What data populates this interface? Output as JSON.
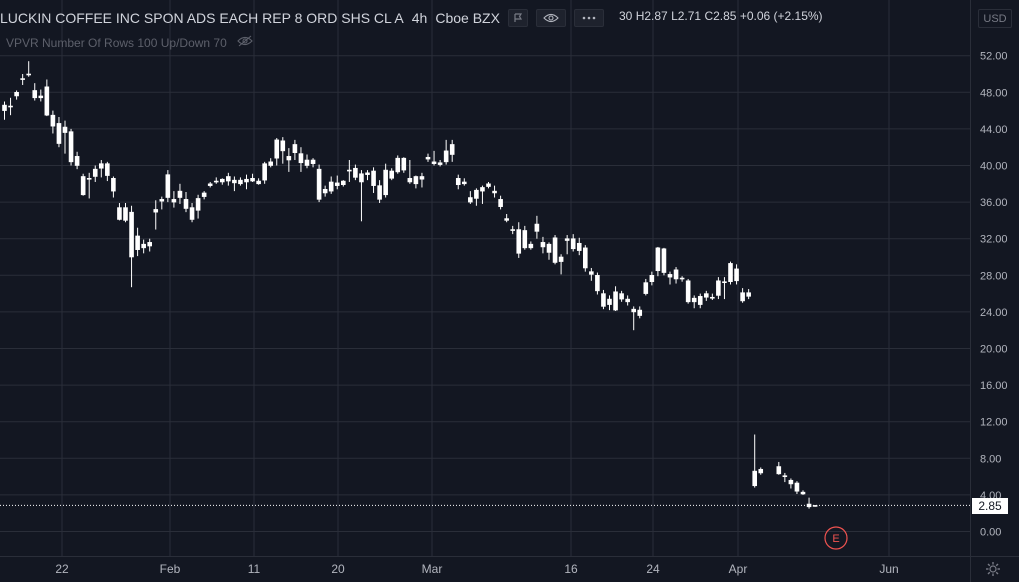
{
  "header": {
    "symbol": "LUCKIN COFFEE INC SPON ADS EACH REP 8 ORD SHS CL A",
    "interval": "4h",
    "exchange": "Cboe BZX",
    "ohlc_partial": "30",
    "high": "H2.87",
    "low": "L2.71",
    "close": "C2.85",
    "change": "+0.06 (+2.15%)"
  },
  "indicator": {
    "label": "VPVR Number Of Rows 100 Up/Down 70"
  },
  "currency": "USD",
  "last_price_label": "2.85",
  "earnings_marker": "E",
  "icons": {
    "flag": "flag-icon",
    "eye": "eye-icon",
    "more": "more-dots-icon",
    "hide": "eye-off-icon",
    "settings": "gear-icon"
  },
  "colors": {
    "background": "#131722",
    "candle": "#ffffff",
    "grid": "#2a2e39",
    "earnings": "#ef5350"
  },
  "chart_data": {
    "type": "candlestick",
    "y_ticks": [
      "52.00",
      "48.00",
      "44.00",
      "40.00",
      "36.00",
      "32.00",
      "28.00",
      "24.00",
      "20.00",
      "16.00",
      "12.00",
      "8.00",
      "4.00",
      "0.00"
    ],
    "ylim": [
      0,
      52
    ],
    "x_ticks": [
      "22",
      "Feb",
      "11",
      "20",
      "Mar",
      "16",
      "24",
      "Apr",
      "Jun"
    ],
    "grid": true,
    "series_bars": [
      [
        46.6,
        47.0,
        45.0,
        46.0
      ],
      [
        46.5,
        47.4,
        45.5,
        46.4
      ],
      [
        48.0,
        48.2,
        47.2,
        47.6
      ],
      [
        49.5,
        50.0,
        48.8,
        49.4
      ],
      [
        50.0,
        51.4,
        49.7,
        50.0
      ],
      [
        48.2,
        49.0,
        47.1,
        47.4
      ],
      [
        47.6,
        48.3,
        47.0,
        47.4
      ],
      [
        48.6,
        49.4,
        45.4,
        45.5
      ],
      [
        45.5,
        46.0,
        43.5,
        44.3
      ],
      [
        44.6,
        45.3,
        42.0,
        42.4
      ],
      [
        44.2,
        44.9,
        41.3,
        43.6
      ],
      [
        43.7,
        44.0,
        40.0,
        40.4
      ],
      [
        41.0,
        41.5,
        39.6,
        40.0
      ],
      [
        38.8,
        39.1,
        36.7,
        36.8
      ],
      [
        38.6,
        39.2,
        36.4,
        38.5
      ],
      [
        38.8,
        40.0,
        38.2,
        39.6
      ],
      [
        40.2,
        40.6,
        38.7,
        39.7
      ],
      [
        40.2,
        40.4,
        38.3,
        38.9
      ],
      [
        37.2,
        38.8,
        36.5,
        38.6
      ],
      [
        35.4,
        35.9,
        34.0,
        34.1
      ],
      [
        35.4,
        35.9,
        33.8,
        34.0
      ],
      [
        34.9,
        35.6,
        26.7,
        30.0
      ],
      [
        32.3,
        33.2,
        30.1,
        30.8
      ],
      [
        31.4,
        31.9,
        30.4,
        31.0
      ],
      [
        31.6,
        32.0,
        30.6,
        31.2
      ],
      [
        35.2,
        36.2,
        33.0,
        34.9
      ],
      [
        36.3,
        36.6,
        35.2,
        36.1
      ],
      [
        36.5,
        39.5,
        36.0,
        39.0
      ],
      [
        36.3,
        37.2,
        35.4,
        36.0
      ],
      [
        36.5,
        38.0,
        35.8,
        37.2
      ],
      [
        36.3,
        37.1,
        34.9,
        35.3
      ],
      [
        35.4,
        35.9,
        33.8,
        34.1
      ],
      [
        35.1,
        36.8,
        34.2,
        36.4
      ],
      [
        36.6,
        37.2,
        36.3,
        37.0
      ],
      [
        37.8,
        38.2,
        37.6,
        38.0
      ],
      [
        38.3,
        38.7,
        38.0,
        38.2
      ],
      [
        38.5,
        38.6,
        37.9,
        38.2
      ],
      [
        38.8,
        39.2,
        37.8,
        38.3
      ],
      [
        38.1,
        38.8,
        37.2,
        38.4
      ],
      [
        38.4,
        38.7,
        37.8,
        38.0
      ],
      [
        38.5,
        39.0,
        37.4,
        38.2
      ],
      [
        38.6,
        39.1,
        38.2,
        38.3
      ],
      [
        38.3,
        38.6,
        37.9,
        38.0
      ],
      [
        38.4,
        40.4,
        38.0,
        40.2
      ],
      [
        40.0,
        40.8,
        39.8,
        40.4
      ],
      [
        40.8,
        43.0,
        40.0,
        42.8
      ],
      [
        42.7,
        43.1,
        40.2,
        41.6
      ],
      [
        40.6,
        41.9,
        39.3,
        41.0
      ],
      [
        41.4,
        42.8,
        40.6,
        42.3
      ],
      [
        41.3,
        42.0,
        39.3,
        40.3
      ],
      [
        40.6,
        41.2,
        39.7,
        40.0
      ],
      [
        40.6,
        40.8,
        39.8,
        40.2
      ],
      [
        39.6,
        40.1,
        36.0,
        36.3
      ],
      [
        37.0,
        37.8,
        36.6,
        37.4
      ],
      [
        37.2,
        38.8,
        36.9,
        38.2
      ],
      [
        37.8,
        38.9,
        37.4,
        38.1
      ],
      [
        37.9,
        38.4,
        37.7,
        38.3
      ],
      [
        39.4,
        40.6,
        38.2,
        39.5
      ],
      [
        39.7,
        40.1,
        38.4,
        38.7
      ],
      [
        39.1,
        39.5,
        33.9,
        38.2
      ],
      [
        39.0,
        39.5,
        38.4,
        39.2
      ],
      [
        39.4,
        39.8,
        37.0,
        37.8
      ],
      [
        37.8,
        38.4,
        35.9,
        36.3
      ],
      [
        36.8,
        40.2,
        36.5,
        39.5
      ],
      [
        39.4,
        39.7,
        38.4,
        38.6
      ],
      [
        40.8,
        41.1,
        39.1,
        39.3
      ],
      [
        39.5,
        40.9,
        39.2,
        40.8
      ],
      [
        38.2,
        40.6,
        38.0,
        38.6
      ],
      [
        38.0,
        38.9,
        37.5,
        38.8
      ],
      [
        38.5,
        39.2,
        37.6,
        38.8
      ],
      [
        40.7,
        41.3,
        40.4,
        40.9
      ],
      [
        40.2,
        41.6,
        40.0,
        40.4
      ],
      [
        40.3,
        40.6,
        39.9,
        40.1
      ],
      [
        41.6,
        42.8,
        40.1,
        40.4
      ],
      [
        42.3,
        42.8,
        40.4,
        41.2
      ],
      [
        38.6,
        39.0,
        37.4,
        37.9
      ],
      [
        38.2,
        38.6,
        37.8,
        38.0
      ],
      [
        36.5,
        37.2,
        35.8,
        36.0
      ],
      [
        37.3,
        37.5,
        35.6,
        36.4
      ],
      [
        37.6,
        37.8,
        35.8,
        37.2
      ],
      [
        38.0,
        38.2,
        37.5,
        37.7
      ],
      [
        37.2,
        37.8,
        36.5,
        37.0
      ],
      [
        36.3,
        36.7,
        35.2,
        35.5
      ],
      [
        34.2,
        34.7,
        33.8,
        34.0
      ],
      [
        33.0,
        33.4,
        32.5,
        33.0
      ],
      [
        33.0,
        33.8,
        29.9,
        30.4
      ],
      [
        32.9,
        33.4,
        30.8,
        31.0
      ],
      [
        31.4,
        31.7,
        30.8,
        31.0
      ],
      [
        33.6,
        34.5,
        32.0,
        32.8
      ],
      [
        31.1,
        32.2,
        30.4,
        31.6
      ],
      [
        31.4,
        31.6,
        29.7,
        30.5
      ],
      [
        32.1,
        32.4,
        29.2,
        29.4
      ],
      [
        30.0,
        30.3,
        28.1,
        29.5
      ],
      [
        31.8,
        32.4,
        30.3,
        32.0
      ],
      [
        32.0,
        32.5,
        30.6,
        30.9
      ],
      [
        30.7,
        32.1,
        30.2,
        31.5
      ],
      [
        31.0,
        31.3,
        28.4,
        28.8
      ],
      [
        28.4,
        28.8,
        27.4,
        28.1
      ],
      [
        28.0,
        28.3,
        25.9,
        26.3
      ],
      [
        26.0,
        26.4,
        24.3,
        24.6
      ],
      [
        25.4,
        25.8,
        24.2,
        24.8
      ],
      [
        24.2,
        26.8,
        24.1,
        26.2
      ],
      [
        26.0,
        26.3,
        25.1,
        25.4
      ],
      [
        25.4,
        25.8,
        24.7,
        25.1
      ],
      [
        24.3,
        24.6,
        22.0,
        24.0
      ],
      [
        24.2,
        24.6,
        23.3,
        23.6
      ],
      [
        26.0,
        27.6,
        25.8,
        27.2
      ],
      [
        27.3,
        28.4,
        26.9,
        28.0
      ],
      [
        31.0,
        31.1,
        27.9,
        28.5
      ],
      [
        28.3,
        31.0,
        28.0,
        30.9
      ],
      [
        28.1,
        28.4,
        27.0,
        27.8
      ],
      [
        27.6,
        28.9,
        27.1,
        28.6
      ],
      [
        27.7,
        27.9,
        27.3,
        27.6
      ],
      [
        27.4,
        27.6,
        24.9,
        25.1
      ],
      [
        25.5,
        25.8,
        24.4,
        25.1
      ],
      [
        25.7,
        26.0,
        24.4,
        24.8
      ],
      [
        26.0,
        26.3,
        25.2,
        25.6
      ],
      [
        25.6,
        26.0,
        25.3,
        25.5
      ],
      [
        25.8,
        27.8,
        25.4,
        27.4
      ],
      [
        27.3,
        27.8,
        25.4,
        27.2
      ],
      [
        27.3,
        29.5,
        27.0,
        29.3
      ],
      [
        28.7,
        29.2,
        27.0,
        27.4
      ],
      [
        26.1,
        26.6,
        25.0,
        25.2
      ],
      [
        25.7,
        26.5,
        25.4,
        26.1
      ],
      [
        5.0,
        10.6,
        4.8,
        6.6
      ],
      [
        6.8,
        7.0,
        6.2,
        6.4
      ],
      [
        7.1,
        7.6,
        6.2,
        6.3
      ],
      [
        6.0,
        6.4,
        5.4,
        6.1
      ],
      [
        5.6,
        5.8,
        4.7,
        5.2
      ],
      [
        5.3,
        5.5,
        4.1,
        4.4
      ],
      [
        4.3,
        4.5,
        4.0,
        4.1
      ],
      [
        3.0,
        3.7,
        2.5,
        2.7
      ],
      [
        2.8,
        2.87,
        2.71,
        2.85
      ]
    ],
    "last_price": 2.85
  }
}
